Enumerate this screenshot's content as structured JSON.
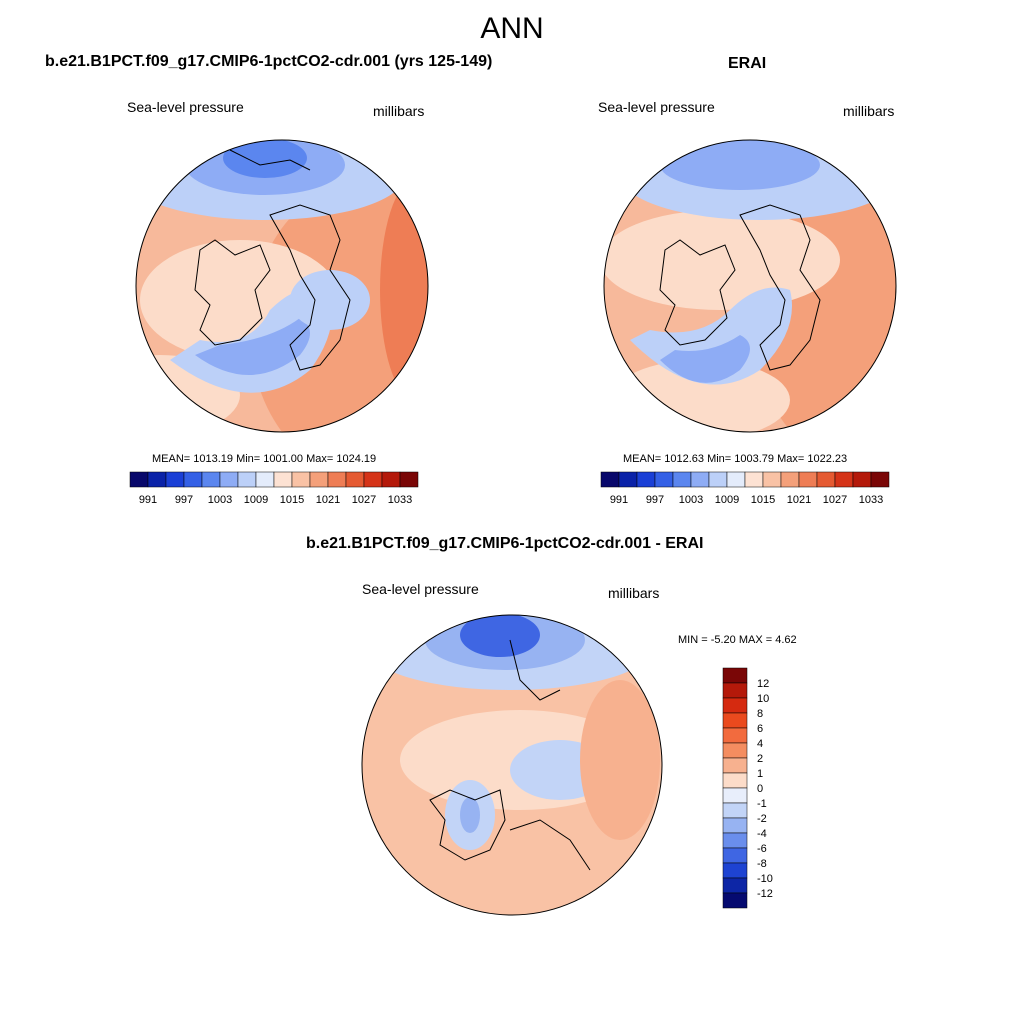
{
  "figure_title": "ANN",
  "panels": [
    {
      "title": "b.e21.B1PCT.f09_g17.CMIP6-1pctCO2-cdr.001 (yrs 125-149)",
      "variable": "Sea-level pressure",
      "units": "millibars",
      "stats": "MEAN= 1013.19  Min= 1001.00  Max= 1024.19"
    },
    {
      "title": "ERAI",
      "variable": "Sea-level pressure",
      "units": "millibars",
      "stats": "MEAN= 1012.63  Min= 1003.79  Max= 1022.23"
    },
    {
      "title": "b.e21.B1PCT.f09_g17.CMIP6-1pctCO2-cdr.001 - ERAI",
      "variable": "Sea-level pressure",
      "units": "millibars",
      "stats": "MIN =  -5.20 MAX =   4.62"
    }
  ],
  "colorbar_abs": {
    "labels": [
      "991",
      "997",
      "1003",
      "1009",
      "1015",
      "1021",
      "1027",
      "1033"
    ],
    "colors": [
      "#08086b",
      "#0a22a8",
      "#1a3fd6",
      "#3460e6",
      "#5b86ef",
      "#8eacf5",
      "#bcd0f8",
      "#e4ecfb",
      "#fde2d3",
      "#f9c2a5",
      "#f4a07a",
      "#ee7d55",
      "#e55a32",
      "#d53318",
      "#b4190a",
      "#7a0606"
    ]
  },
  "colorbar_diff": {
    "labels": [
      "12",
      "10",
      "8",
      "6",
      "4",
      "2",
      "1",
      "0",
      "-1",
      "-2",
      "-4",
      "-6",
      "-8",
      "-10",
      "-12"
    ],
    "colors": [
      "#7a0606",
      "#b4190a",
      "#d52a10",
      "#ea4a1e",
      "#f26b3e",
      "#f48d60",
      "#f7b18f",
      "#fcdcc9",
      "#e8eefb",
      "#c2d4f7",
      "#97b3f2",
      "#6a8eec",
      "#3f66e3",
      "#1e43d2",
      "#0d26a6",
      "#050a70"
    ]
  }
}
